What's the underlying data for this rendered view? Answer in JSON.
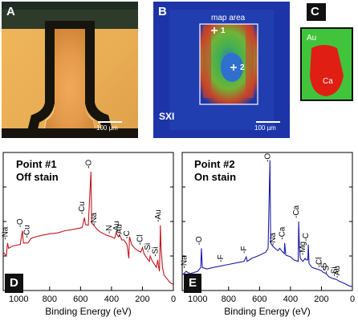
{
  "panels": {
    "a": {
      "label": "A",
      "scale": "100 µm"
    },
    "b": {
      "label": "B",
      "map_area": "map area",
      "point1": "1",
      "point2": "2",
      "sxi": "SXI",
      "scale": "100 µm"
    },
    "c": {
      "label": "C",
      "au": "Au",
      "ca": "Ca"
    },
    "d": {
      "label": "D",
      "title_line1": "Point #1",
      "title_line2": "Off stain"
    },
    "e": {
      "label": "E",
      "title_line1": "Point #2",
      "title_line2": "On stain"
    }
  },
  "chart_data": [
    {
      "panel": "D",
      "type": "line",
      "xlabel": "Binding Energy (eV)",
      "xlim": [
        1100,
        0
      ],
      "xticks": [
        1000,
        800,
        600,
        400,
        200,
        0
      ],
      "series": [
        {
          "color": "#c0161c",
          "points": [
            [
              1100,
              0.5
            ],
            [
              1080,
              0.45
            ],
            [
              1072,
              0.62
            ],
            [
              1065,
              0.55
            ],
            [
              1040,
              0.58
            ],
            [
              990,
              0.6
            ],
            [
              976,
              0.78
            ],
            [
              970,
              0.62
            ],
            [
              940,
              0.62
            ],
            [
              930,
              0.65
            ],
            [
              920,
              0.68
            ],
            [
              890,
              0.7
            ],
            [
              850,
              0.72
            ],
            [
              800,
              0.74
            ],
            [
              750,
              0.75
            ],
            [
              700,
              0.78
            ],
            [
              640,
              0.8
            ],
            [
              590,
              0.82
            ],
            [
              575,
              0.95
            ],
            [
              568,
              0.86
            ],
            [
              550,
              0.85
            ],
            [
              533,
              1.55
            ],
            [
              528,
              0.88
            ],
            [
              510,
              0.84
            ],
            [
              495,
              0.8
            ],
            [
              470,
              0.76
            ],
            [
              430,
              0.72
            ],
            [
              400,
              0.7
            ],
            [
              380,
              0.68
            ],
            [
              370,
              0.75
            ],
            [
              355,
              0.7
            ],
            [
              345,
              0.72
            ],
            [
              334,
              0.66
            ],
            [
              320,
              0.66
            ],
            [
              300,
              0.6
            ],
            [
              288,
              0.42
            ],
            [
              284,
              0.7
            ],
            [
              270,
              0.6
            ],
            [
              250,
              0.55
            ],
            [
              230,
              0.52
            ],
            [
              210,
              0.5
            ],
            [
              200,
              0.56
            ],
            [
              190,
              0.48
            ],
            [
              170,
              0.42
            ],
            [
              155,
              0.38
            ],
            [
              150,
              0.45
            ],
            [
              140,
              0.4
            ],
            [
              110,
              0.3
            ],
            [
              101,
              0.4
            ],
            [
              95,
              0.3
            ],
            [
              90,
              0.25
            ],
            [
              84,
              0.85
            ],
            [
              80,
              0.55
            ],
            [
              70,
              0.3
            ],
            [
              60,
              0.2
            ],
            [
              40,
              0.15
            ],
            [
              20,
              0.1
            ],
            [
              0,
              0.08
            ]
          ]
        }
      ],
      "peaks": [
        {
          "label": "Na",
          "x": 1072
        },
        {
          "label": "O",
          "x": 976
        },
        {
          "label": "Cu",
          "x": 932
        },
        {
          "label": "Cu",
          "x": 575
        },
        {
          "label": "O",
          "x": 533
        },
        {
          "label": "Na",
          "x": 497
        },
        {
          "label": "N",
          "x": 400
        },
        {
          "label": "Au",
          "x": 354
        },
        {
          "label": "Au",
          "x": 334
        },
        {
          "label": "C",
          "x": 285
        },
        {
          "label": "Cl",
          "x": 199
        },
        {
          "label": "Si",
          "x": 150
        },
        {
          "label": "Si",
          "x": 101
        },
        {
          "label": "Au",
          "x": 84
        }
      ]
    },
    {
      "panel": "E",
      "type": "line",
      "xlabel": "Binding Energy (eV)",
      "xlim": [
        1100,
        0
      ],
      "xticks": [
        1000,
        800,
        600,
        400,
        200,
        0
      ],
      "series": [
        {
          "color": "#1c1ca8",
          "points": [
            [
              1100,
              0.2
            ],
            [
              1075,
              0.25
            ],
            [
              1050,
              0.22
            ],
            [
              1000,
              0.25
            ],
            [
              980,
              0.3
            ],
            [
              976,
              0.55
            ],
            [
              970,
              0.3
            ],
            [
              940,
              0.28
            ],
            [
              900,
              0.3
            ],
            [
              850,
              0.32
            ],
            [
              800,
              0.34
            ],
            [
              750,
              0.36
            ],
            [
              700,
              0.38
            ],
            [
              686,
              0.44
            ],
            [
              680,
              0.38
            ],
            [
              650,
              0.42
            ],
            [
              600,
              0.46
            ],
            [
              560,
              0.5
            ],
            [
              545,
              0.55
            ],
            [
              533,
              1.7
            ],
            [
              528,
              0.62
            ],
            [
              515,
              0.58
            ],
            [
              495,
              0.54
            ],
            [
              480,
              0.52
            ],
            [
              470,
              0.55
            ],
            [
              450,
              0.5
            ],
            [
              440,
              0.48
            ],
            [
              438,
              0.62
            ],
            [
              430,
              0.46
            ],
            [
              400,
              0.44
            ],
            [
              380,
              0.4
            ],
            [
              350,
              0.38
            ],
            [
              347,
              0.9
            ],
            [
              342,
              0.55
            ],
            [
              336,
              0.42
            ],
            [
              320,
              0.38
            ],
            [
              305,
              0.42
            ],
            [
              300,
              0.4
            ],
            [
              288,
              0.4
            ],
            [
              285,
              0.6
            ],
            [
              280,
              0.35
            ],
            [
              260,
              0.3
            ],
            [
              230,
              0.28
            ],
            [
              200,
              0.26
            ],
            [
              190,
              0.24
            ],
            [
              170,
              0.22
            ],
            [
              160,
              0.2
            ],
            [
              153,
              0.18
            ],
            [
              130,
              0.16
            ],
            [
              115,
              0.15
            ],
            [
              100,
              0.14
            ],
            [
              85,
              0.12
            ],
            [
              60,
              0.1
            ],
            [
              40,
              0.08
            ],
            [
              20,
              0.06
            ],
            [
              0,
              0.05
            ]
          ]
        }
      ],
      "peaks": [
        {
          "label": "Na",
          "x": 1072
        },
        {
          "label": "O",
          "x": 976
        },
        {
          "label": "F",
          "x": 835
        },
        {
          "label": "F",
          "x": 686
        },
        {
          "label": "O",
          "x": 533
        },
        {
          "label": "Na",
          "x": 497
        },
        {
          "label": "Ca",
          "x": 438
        },
        {
          "label": "Ca",
          "x": 347
        },
        {
          "label": "Mg",
          "x": 306
        },
        {
          "label": "C",
          "x": 285
        },
        {
          "label": "Cl",
          "x": 199
        },
        {
          "label": "S",
          "x": 168
        },
        {
          "label": "S",
          "x": 153
        },
        {
          "label": "Si",
          "x": 101
        },
        {
          "label": "Au",
          "x": 84
        }
      ]
    }
  ]
}
